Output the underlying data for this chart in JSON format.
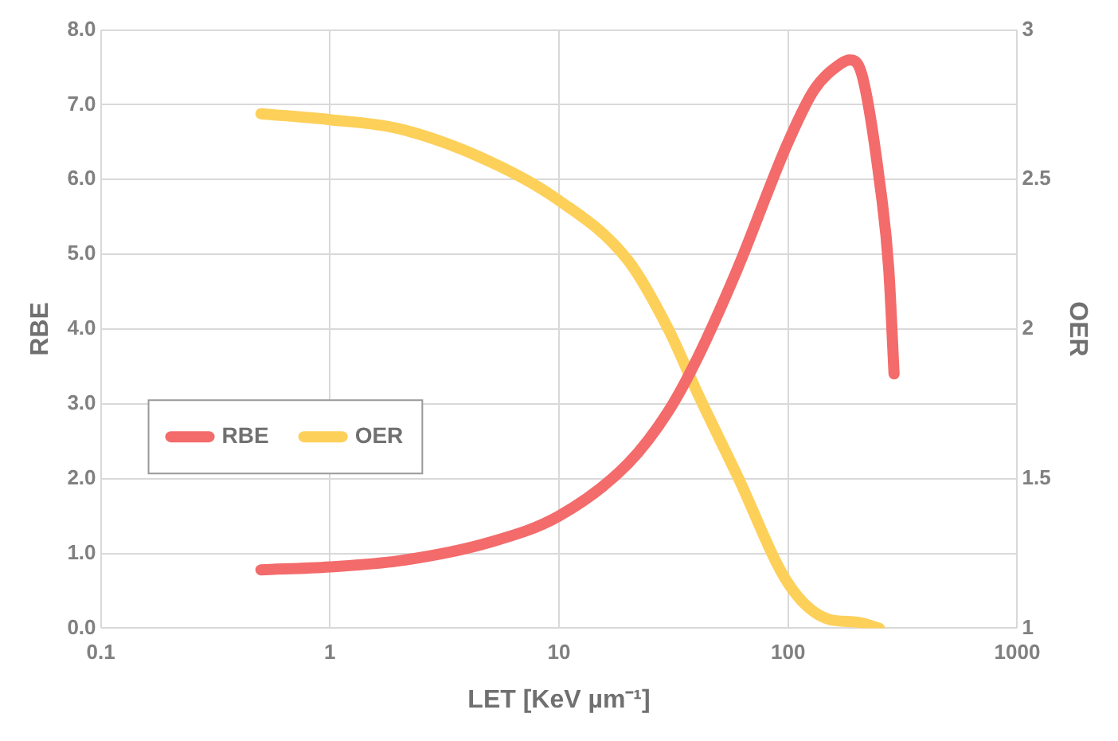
{
  "chart_data": {
    "type": "line",
    "xlabel": "LET [KeV µm⁻¹]",
    "ylabel": "RBE",
    "y2label": "OER",
    "log": "x",
    "grid": true,
    "legend": "left",
    "marker": "none",
    "line_style": "solid",
    "xlim": [
      0.1,
      1000
    ],
    "xticks": [
      0.1,
      1,
      10,
      100,
      1000
    ],
    "ylim": [
      0,
      8
    ],
    "yticks": [
      {
        "value": 0,
        "label": "0.0"
      },
      {
        "value": 1,
        "label": "1.0"
      },
      {
        "value": 2,
        "label": "2.0"
      },
      {
        "value": 3,
        "label": "3.0"
      },
      {
        "value": 4,
        "label": "4.0"
      },
      {
        "value": 5,
        "label": "5.0"
      },
      {
        "value": 6,
        "label": "6.0"
      },
      {
        "value": 7,
        "label": "7.0"
      },
      {
        "value": 8,
        "label": "8.0"
      }
    ],
    "y2lim": [
      1,
      3
    ],
    "y2ticks": [
      1,
      1.5,
      2,
      2.5,
      3
    ],
    "series": [
      {
        "name": "RBE",
        "color": "#f36b6b",
        "x": [
          0.5,
          1,
          2,
          5,
          10,
          20,
          30,
          40,
          60,
          100,
          130,
          170,
          186,
          210,
          250,
          275,
          290
        ],
        "values": [
          0.78,
          0.82,
          0.9,
          1.15,
          1.5,
          2.2,
          2.9,
          3.6,
          4.8,
          6.5,
          7.2,
          7.55,
          7.6,
          7.4,
          6.0,
          4.8,
          3.4
        ]
      },
      {
        "name": "OER",
        "color": "#fdd05a",
        "axis": "y2",
        "x": [
          0.5,
          1,
          2,
          5,
          10,
          20,
          30,
          40,
          60,
          100,
          150,
          200,
          250
        ],
        "values": [
          2.72,
          2.7,
          2.67,
          2.56,
          2.43,
          2.23,
          2.0,
          1.79,
          1.51,
          1.15,
          1.03,
          1.02,
          1.0
        ]
      }
    ]
  }
}
